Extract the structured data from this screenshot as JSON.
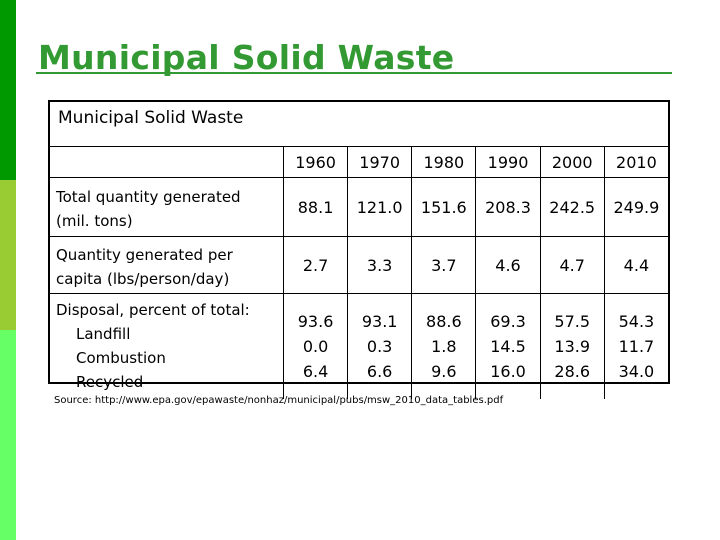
{
  "slide": {
    "title": "Municipal Solid Waste",
    "accent_colors": {
      "bar_top": "#009900",
      "bar_mid": "#99cc33",
      "bar_bottom": "#66ff66",
      "title": "#339933"
    }
  },
  "table": {
    "caption": "Municipal Solid Waste",
    "years": [
      "1960",
      "1970",
      "1980",
      "1990",
      "2000",
      "2010"
    ],
    "rows": {
      "total": {
        "label_line1": "Total quantity generated",
        "label_line2": "(mil. tons)",
        "values": [
          "88.1",
          "121.0",
          "151.6",
          "208.3",
          "242.5",
          "249.9"
        ]
      },
      "per_capita": {
        "label_line1": "Quantity generated per",
        "label_line2": "capita (lbs/person/day)",
        "values": [
          "2.7",
          "3.3",
          "3.7",
          "4.6",
          "4.7",
          "4.4"
        ]
      },
      "disposal": {
        "label": "Disposal, percent of total:",
        "sub_labels": [
          "Landfill",
          "Combustion",
          "Recycled"
        ],
        "landfill": [
          "93.6",
          "93.1",
          "88.6",
          "69.3",
          "57.5",
          "54.3"
        ],
        "combustion": [
          "0.0",
          "0.3",
          "1.8",
          "14.5",
          "13.9",
          "11.7"
        ],
        "recycled": [
          "6.4",
          "6.6",
          "9.6",
          "16.0",
          "28.6",
          "34.0"
        ]
      }
    }
  },
  "source": "Source: http://www.epa.gov/epawaste/nonhaz/municipal/pubs/msw_2010_data_tables.pdf"
}
